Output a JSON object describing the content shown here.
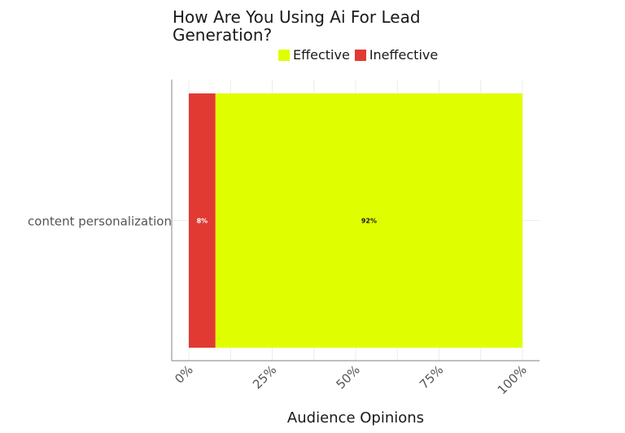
{
  "chart_data": {
    "type": "bar",
    "orientation": "horizontal",
    "stacked": true,
    "title": "How Are You Using Ai For Lead Generation?",
    "xlabel": "Audience Opinions",
    "ylabel": "",
    "categories": [
      "content personalization"
    ],
    "series": [
      {
        "name": "Ineffective",
        "values": [
          8
        ],
        "color": "#e03a33",
        "labels": [
          "8%"
        ]
      },
      {
        "name": "Effective",
        "values": [
          92
        ],
        "color": "#dfff00",
        "labels": [
          "92%"
        ]
      }
    ],
    "legend_order": [
      "Effective",
      "Ineffective"
    ],
    "xlim": [
      0,
      100
    ],
    "xticks": [
      "0%",
      "25%",
      "50%",
      "75%",
      "100%"
    ],
    "grid": true,
    "legend_position": "top"
  }
}
